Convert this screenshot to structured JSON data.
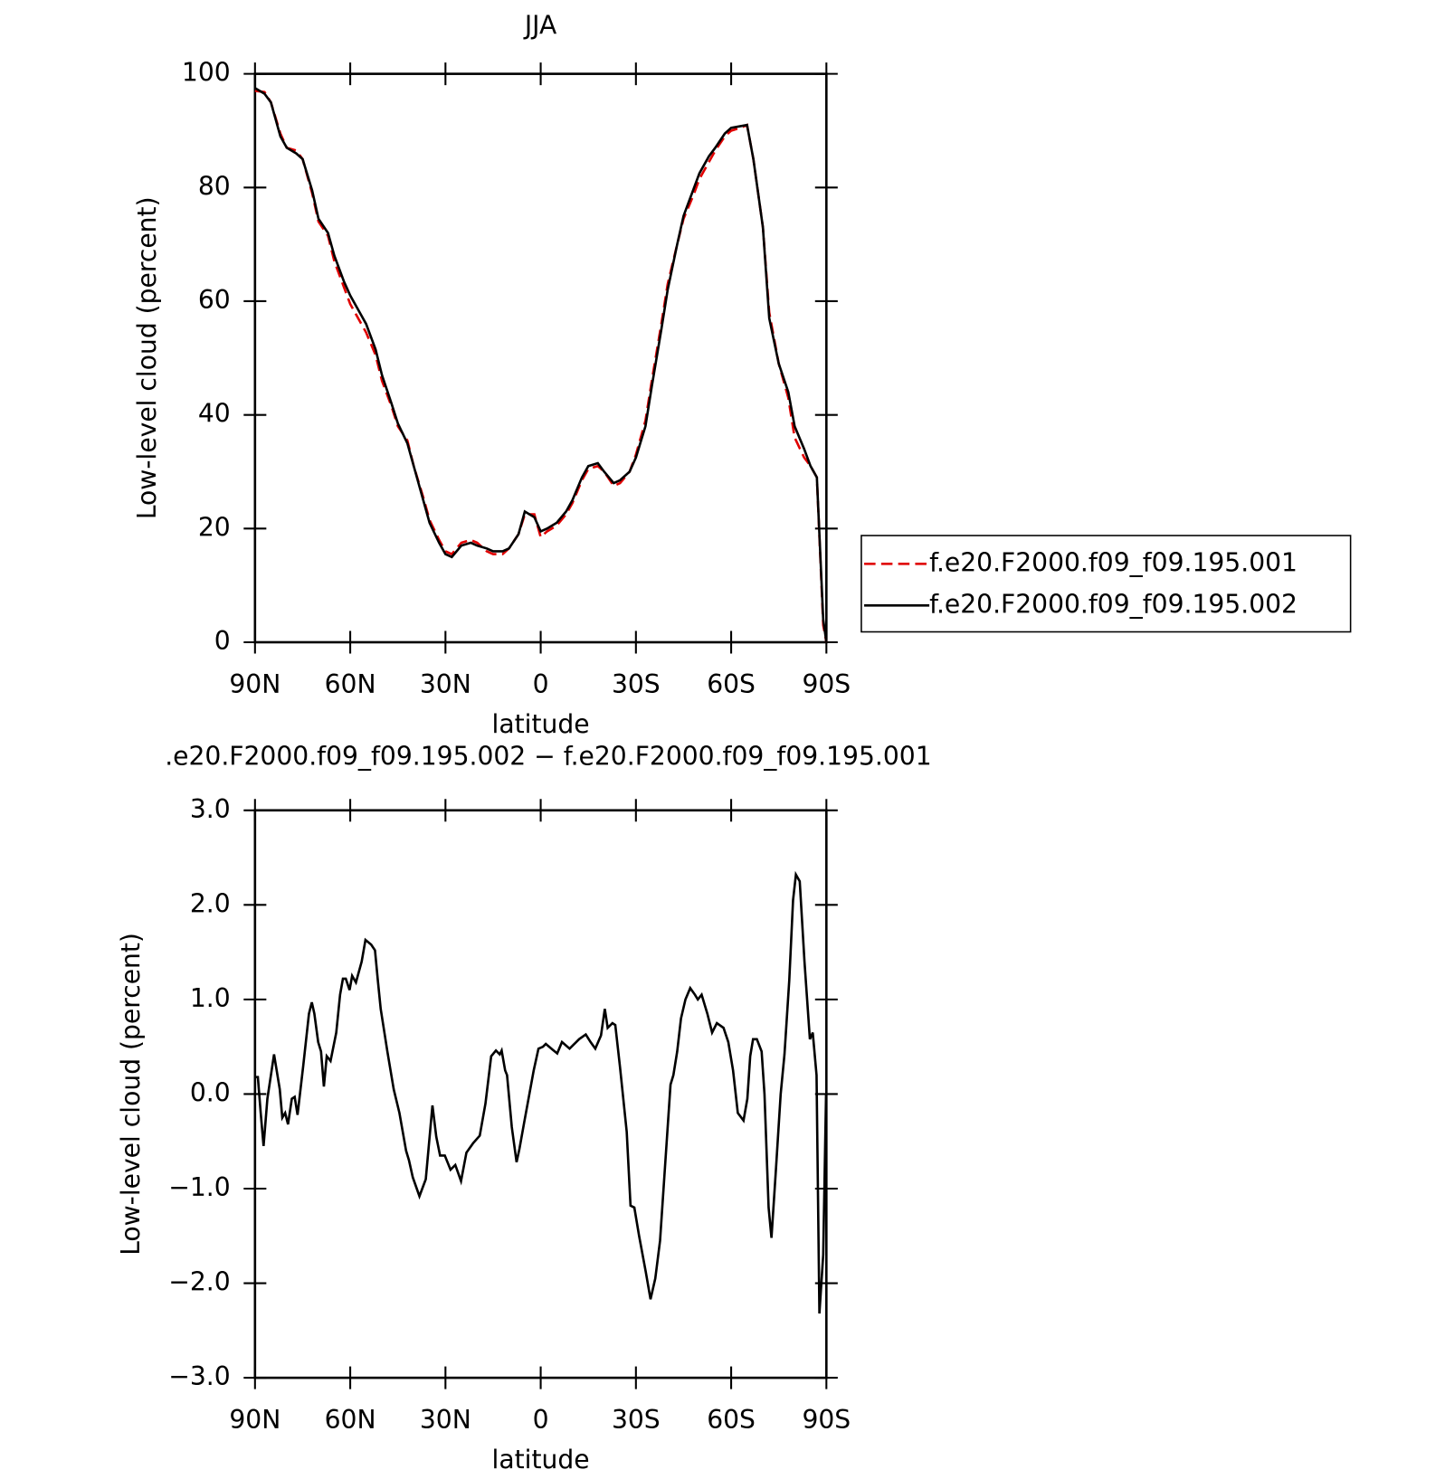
{
  "chart_data": [
    {
      "type": "line",
      "title": "JJA",
      "xlabel": "latitude",
      "ylabel": "Low-level cloud (percent)",
      "xlim": [
        90,
        -90
      ],
      "xticks": [
        {
          "value": 90,
          "label": "90N"
        },
        {
          "value": 60,
          "label": "60N"
        },
        {
          "value": 30,
          "label": "30N"
        },
        0,
        {
          "value": -30,
          "label": "30S"
        },
        {
          "value": -60,
          "label": "60S"
        },
        {
          "value": -90,
          "label": "90S"
        }
      ],
      "ylim": [
        0,
        100
      ],
      "yticks": [
        0,
        20,
        40,
        60,
        80,
        100
      ],
      "legend": "right",
      "x": [
        90,
        87,
        85,
        82,
        80,
        77,
        75,
        72,
        70,
        67,
        65,
        62,
        60,
        57,
        55,
        52,
        50,
        47,
        45,
        42,
        40,
        37,
        35,
        32,
        30,
        28,
        25,
        22,
        20,
        17,
        15,
        12,
        10,
        7,
        5,
        2,
        0,
        -2,
        -5,
        -8,
        -10,
        -13,
        -15,
        -18,
        -20,
        -23,
        -25,
        -28,
        -30,
        -33,
        -35,
        -38,
        -40,
        -43,
        -45,
        -48,
        -50,
        -53,
        -55,
        -58,
        -60,
        -63,
        -65,
        -67,
        -70,
        -72,
        -75,
        -78,
        -80,
        -83,
        -85,
        -87,
        -89,
        -90
      ],
      "series": [
        {
          "name": "f.e20.F2000.f09_f09.195.001",
          "color": "#e00000",
          "dashed": true,
          "values": [
            97,
            96.8,
            95,
            89.5,
            87,
            86.5,
            85,
            79,
            74,
            71.5,
            67,
            62.5,
            59.5,
            56.5,
            54.5,
            50.5,
            46,
            41.5,
            38,
            35.5,
            31,
            25.5,
            21.5,
            18,
            16,
            15.5,
            17.5,
            18,
            17.5,
            16,
            15.5,
            15.5,
            16.5,
            19,
            22.5,
            22.5,
            18.5,
            19.5,
            20.5,
            22.5,
            24.5,
            28.5,
            30.5,
            31,
            30,
            27.5,
            28,
            30,
            33,
            39,
            46,
            56,
            63,
            70,
            74.5,
            78.5,
            81.5,
            84.5,
            86.5,
            89,
            90,
            90.5,
            91,
            85,
            73,
            58,
            49,
            43,
            36,
            32.5,
            31,
            29,
            3,
            0
          ]
        },
        {
          "name": "f.e20.F2000.f09_f09.195.002",
          "color": "#000000",
          "dashed": false,
          "values": [
            97.5,
            96.5,
            95,
            89,
            87,
            86,
            85,
            79.5,
            74.5,
            72,
            68,
            63.5,
            61,
            58,
            56,
            51.5,
            47,
            42,
            38.5,
            35,
            31,
            25,
            21,
            17.5,
            15.5,
            15,
            17,
            17.5,
            17,
            16.5,
            16,
            16,
            16.5,
            19,
            23,
            22,
            19.5,
            20,
            21,
            23,
            25,
            29,
            31,
            31.5,
            30,
            28,
            28.5,
            30,
            32.5,
            38,
            45,
            55,
            62,
            70,
            75,
            79.5,
            82.5,
            85.5,
            87,
            89.5,
            90.5,
            90.8,
            91,
            85,
            73,
            57,
            49,
            44,
            38,
            34,
            31,
            29,
            4,
            0
          ]
        }
      ]
    },
    {
      "type": "line",
      "title": ".e20.F2000.f09_f09.195.002 − f.e20.F2000.f09_f09.195.001",
      "xlabel": "latitude",
      "ylabel": "Low-level cloud (percent)",
      "xlim": [
        90,
        -90
      ],
      "xticks": [
        {
          "value": 90,
          "label": "90N"
        },
        {
          "value": 60,
          "label": "60N"
        },
        {
          "value": 30,
          "label": "30N"
        },
        0,
        {
          "value": -30,
          "label": "30S"
        },
        {
          "value": -60,
          "label": "60S"
        },
        {
          "value": -90,
          "label": "90S"
        }
      ],
      "ylim": [
        -3,
        3
      ],
      "yticks": [
        {
          "value": -3,
          "label": "−3.0"
        },
        {
          "value": -2,
          "label": "−2.0"
        },
        {
          "value": -1,
          "label": "−1.0"
        },
        {
          "value": 0,
          "label": "0.0"
        },
        {
          "value": 1,
          "label": "1.0"
        },
        {
          "value": 2,
          "label": "2.0"
        },
        {
          "value": 3,
          "label": "3.0"
        }
      ],
      "color": "#000000",
      "x": [
        90,
        89.1,
        88.2,
        87.3,
        86.1,
        84,
        82.2,
        81.4,
        80.5,
        79.6,
        78.4,
        77.5,
        76.6,
        74.8,
        73,
        72.1,
        71.3,
        70.1,
        69.2,
        68.3,
        67.4,
        66.2,
        64.4,
        63.2,
        62.3,
        61.4,
        60.2,
        59.4,
        58.2,
        56.4,
        55.2,
        53.4,
        52.2,
        51.3,
        50.4,
        48.3,
        46.3,
        44.5,
        42.4,
        41.5,
        40.3,
        38.2,
        36.2,
        34.1,
        32.9,
        31.7,
        30.2,
        28.4,
        26.9,
        25.1,
        23.4,
        21.3,
        19.2,
        17.4,
        15.6,
        14.1,
        12.9,
        12.3,
        11.2,
        10.6,
        9.1,
        7.6,
        6.7,
        5.2,
        2.2,
        0.7,
        -0.7,
        -1.6,
        -3.7,
        -5.2,
        -6.7,
        -9.1,
        -10.3,
        -12.1,
        -14.2,
        -15.7,
        -17.2,
        -19,
        -20.2,
        -21.1,
        -22.6,
        -23.5,
        -25,
        -27.1,
        -28.3,
        -29.5,
        -31,
        -33.1,
        -34.6,
        -36.1,
        -37.6,
        -39.1,
        -40.9,
        -41.8,
        -43,
        -44.2,
        -45.6,
        -47.1,
        -48.6,
        -49.5,
        -50.7,
        -52.5,
        -54,
        -55.5,
        -57.6,
        -59.1,
        -60.6,
        -62.1,
        -63.9,
        -65.1,
        -66,
        -66.9,
        -68.1,
        -69.6,
        -70.5,
        -71.8,
        -72.7,
        -74.1,
        -75.6,
        -76.8,
        -78.3,
        -79.5,
        -80.4,
        -81.6,
        -83.1,
        -84.8,
        -85.7,
        -86.9,
        -87.8,
        -89,
        -89.9
      ],
      "values": [
        0.18,
        0.18,
        -0.2,
        -0.55,
        -0.05,
        0.42,
        0.05,
        -0.25,
        -0.2,
        -0.32,
        -0.05,
        -0.03,
        -0.22,
        0.3,
        0.85,
        0.97,
        0.85,
        0.55,
        0.45,
        0.08,
        0.4,
        0.35,
        0.65,
        1.05,
        1.22,
        1.22,
        1.1,
        1.25,
        1.18,
        1.4,
        1.63,
        1.58,
        1.52,
        1.2,
        0.9,
        0.45,
        0.05,
        -0.2,
        -0.6,
        -0.7,
        -0.88,
        -1.08,
        -0.9,
        -0.12,
        -0.45,
        -0.65,
        -0.65,
        -0.8,
        -0.75,
        -0.92,
        -0.62,
        -0.52,
        -0.44,
        -0.1,
        0.4,
        0.46,
        0.42,
        0.46,
        0.25,
        0.2,
        -0.35,
        -0.72,
        -0.58,
        -0.3,
        0.25,
        0.48,
        0.5,
        0.53,
        0.47,
        0.43,
        0.55,
        0.48,
        0.52,
        0.58,
        0.63,
        0.55,
        0.48,
        0.62,
        0.9,
        0.7,
        0.75,
        0.73,
        0.28,
        -0.4,
        -1.18,
        -1.2,
        -1.5,
        -1.88,
        -2.17,
        -1.95,
        -1.55,
        -0.8,
        0.1,
        0.2,
        0.45,
        0.8,
        1,
        1.12,
        1.05,
        1,
        1.05,
        0.85,
        0.65,
        0.75,
        0.7,
        0.55,
        0.25,
        -0.2,
        -0.28,
        -0.05,
        0.4,
        0.58,
        0.58,
        0.45,
        0,
        -1.2,
        -1.52,
        -0.8,
        0,
        0.42,
        1.2,
        2.05,
        2.32,
        2.25,
        1.4,
        0.58,
        0.65,
        0.2,
        -2.32,
        -1.7,
        0
      ]
    }
  ]
}
